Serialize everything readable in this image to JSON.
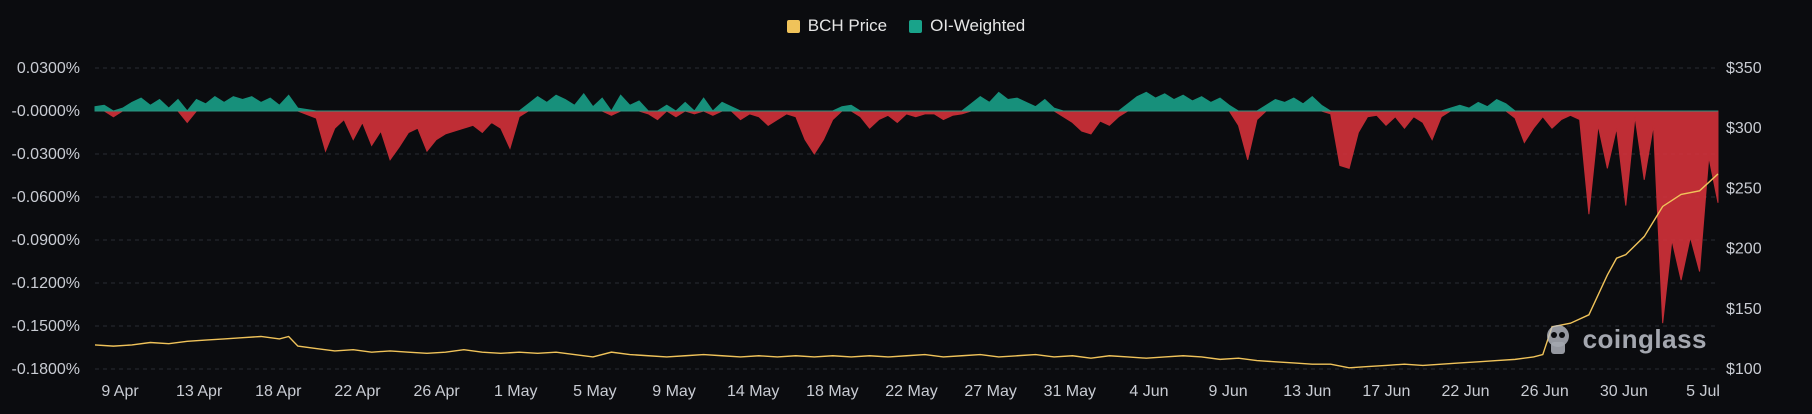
{
  "legend": {
    "price_label": "BCH Price",
    "oi_label": "OI-Weighted"
  },
  "watermark": {
    "text": "coinglass"
  },
  "colors": {
    "price": "#f0c35a",
    "positive": "#19a38a",
    "negative": "#d8323b",
    "grid": "#2a2d33",
    "text": "#c9ccd3"
  },
  "chart_data": {
    "type": "area",
    "grid": "horizontal-dashed",
    "legend_position": "top-center",
    "x_ticks": [
      "9 Apr",
      "13 Apr",
      "18 Apr",
      "22 Apr",
      "26 Apr",
      "1 May",
      "5 May",
      "9 May",
      "14 May",
      "18 May",
      "22 May",
      "27 May",
      "31 May",
      "4 Jun",
      "9 Jun",
      "13 Jun",
      "17 Jun",
      "22 Jun",
      "26 Jun",
      "30 Jun",
      "5 Jul"
    ],
    "y_left": {
      "ticks": [
        "0.0300%",
        "-0.0000%",
        "-0.0300%",
        "-0.0600%",
        "-0.0900%",
        "-0.1200%",
        "-0.1500%",
        "-0.1800%"
      ],
      "range": [
        -0.18,
        0.03
      ]
    },
    "y_right": {
      "ticks": [
        "$350",
        "$300",
        "$250",
        "$200",
        "$150",
        "$100"
      ],
      "range": [
        100,
        350
      ]
    },
    "x_range": [
      0,
      88
    ],
    "series": [
      {
        "name": "OI-Weighted",
        "axis": "left",
        "points": [
          [
            0,
            0.003
          ],
          [
            0.5,
            0.004
          ],
          [
            1,
            -0.004
          ],
          [
            1.5,
            0.002
          ],
          [
            2,
            0.006
          ],
          [
            2.5,
            0.009
          ],
          [
            3,
            0.004
          ],
          [
            3.5,
            0.008
          ],
          [
            4,
            0.002
          ],
          [
            4.5,
            0.008
          ],
          [
            5,
            -0.008
          ],
          [
            5.5,
            0.008
          ],
          [
            6,
            0.005
          ],
          [
            6.5,
            0.01
          ],
          [
            7,
            0.006
          ],
          [
            7.5,
            0.01
          ],
          [
            8,
            0.008
          ],
          [
            8.5,
            0.01
          ],
          [
            9,
            0.006
          ],
          [
            9.5,
            0.009
          ],
          [
            10,
            0.004
          ],
          [
            10.5,
            0.011
          ],
          [
            11,
            0.002
          ],
          [
            12,
            -0.005
          ],
          [
            12.5,
            -0.028
          ],
          [
            13,
            -0.012
          ],
          [
            13.5,
            -0.006
          ],
          [
            14,
            -0.02
          ],
          [
            14.5,
            -0.008
          ],
          [
            15,
            -0.024
          ],
          [
            15.5,
            -0.014
          ],
          [
            16,
            -0.034
          ],
          [
            16.5,
            -0.025
          ],
          [
            17,
            -0.015
          ],
          [
            17.5,
            -0.012
          ],
          [
            18,
            -0.028
          ],
          [
            18.5,
            -0.02
          ],
          [
            19,
            -0.016
          ],
          [
            19.5,
            -0.014
          ],
          [
            20,
            -0.012
          ],
          [
            20.5,
            -0.01
          ],
          [
            21,
            -0.015
          ],
          [
            21.5,
            -0.008
          ],
          [
            22,
            -0.012
          ],
          [
            22.5,
            -0.026
          ],
          [
            23,
            -0.004
          ],
          [
            23.5,
            0.005
          ],
          [
            24,
            0.01
          ],
          [
            24.5,
            0.006
          ],
          [
            25,
            0.011
          ],
          [
            25.5,
            0.008
          ],
          [
            26,
            0.004
          ],
          [
            26.5,
            0.012
          ],
          [
            27,
            0.003
          ],
          [
            27.5,
            0.009
          ],
          [
            28,
            -0.003
          ],
          [
            28.5,
            0.011
          ],
          [
            29,
            0.004
          ],
          [
            29.5,
            0.007
          ],
          [
            30,
            -0.002
          ],
          [
            30.5,
            -0.006
          ],
          [
            31,
            0.004
          ],
          [
            31.5,
            -0.004
          ],
          [
            32,
            0.006
          ],
          [
            32.5,
            -0.002
          ],
          [
            33,
            0.009
          ],
          [
            33.5,
            -0.003
          ],
          [
            34,
            0.006
          ],
          [
            34.5,
            0.003
          ],
          [
            35,
            -0.006
          ],
          [
            35.5,
            -0.002
          ],
          [
            36,
            -0.004
          ],
          [
            36.5,
            -0.01
          ],
          [
            37,
            -0.006
          ],
          [
            37.5,
            -0.002
          ],
          [
            38,
            -0.004
          ],
          [
            38.5,
            -0.02
          ],
          [
            39,
            -0.03
          ],
          [
            39.5,
            -0.02
          ],
          [
            40,
            -0.006
          ],
          [
            40.5,
            0.003
          ],
          [
            41,
            0.004
          ],
          [
            41.5,
            -0.004
          ],
          [
            42,
            -0.012
          ],
          [
            42.5,
            -0.006
          ],
          [
            43,
            -0.003
          ],
          [
            43.5,
            -0.008
          ],
          [
            44,
            -0.002
          ],
          [
            44.5,
            -0.004
          ],
          [
            45,
            -0.002
          ],
          [
            45.5,
            -0.002
          ],
          [
            46,
            -0.006
          ],
          [
            46.5,
            -0.003
          ],
          [
            47,
            -0.002
          ],
          [
            47.5,
            0.005
          ],
          [
            48,
            0.01
          ],
          [
            48.5,
            0.006
          ],
          [
            49,
            0.013
          ],
          [
            49.5,
            0.008
          ],
          [
            50,
            0.009
          ],
          [
            50.5,
            0.006
          ],
          [
            51,
            0.003
          ],
          [
            51.5,
            0.008
          ],
          [
            52,
            0.002
          ],
          [
            52.5,
            -0.004
          ],
          [
            53,
            -0.008
          ],
          [
            53.5,
            -0.014
          ],
          [
            54,
            -0.016
          ],
          [
            54.5,
            -0.007
          ],
          [
            55,
            -0.01
          ],
          [
            55.5,
            -0.004
          ],
          [
            56,
            0.005
          ],
          [
            56.5,
            0.01
          ],
          [
            57,
            0.013
          ],
          [
            57.5,
            0.009
          ],
          [
            58,
            0.012
          ],
          [
            58.5,
            0.008
          ],
          [
            59,
            0.011
          ],
          [
            59.5,
            0.007
          ],
          [
            60,
            0.01
          ],
          [
            60.5,
            0.006
          ],
          [
            61,
            0.009
          ],
          [
            61.5,
            0.004
          ],
          [
            62,
            -0.01
          ],
          [
            62.5,
            -0.034
          ],
          [
            63,
            -0.006
          ],
          [
            63.5,
            0.004
          ],
          [
            64,
            0.008
          ],
          [
            64.5,
            0.006
          ],
          [
            65,
            0.009
          ],
          [
            65.5,
            0.005
          ],
          [
            66,
            0.01
          ],
          [
            66.5,
            0.004
          ],
          [
            67,
            -0.002
          ],
          [
            67.5,
            -0.038
          ],
          [
            68,
            -0.04
          ],
          [
            68.5,
            -0.015
          ],
          [
            69,
            -0.004
          ],
          [
            69.5,
            -0.003
          ],
          [
            70,
            -0.01
          ],
          [
            70.5,
            -0.004
          ],
          [
            71,
            -0.012
          ],
          [
            71.5,
            -0.004
          ],
          [
            72,
            -0.008
          ],
          [
            72.5,
            -0.02
          ],
          [
            73,
            -0.004
          ],
          [
            73.5,
            0.002
          ],
          [
            74,
            0.004
          ],
          [
            74.5,
            0.002
          ],
          [
            75,
            0.006
          ],
          [
            75.5,
            0.003
          ],
          [
            76,
            0.008
          ],
          [
            76.5,
            0.005
          ],
          [
            77,
            -0.005
          ],
          [
            77.5,
            -0.022
          ],
          [
            78,
            -0.012
          ],
          [
            78.5,
            -0.004
          ],
          [
            79,
            -0.012
          ],
          [
            79.5,
            -0.006
          ],
          [
            80,
            -0.003
          ],
          [
            80.5,
            -0.006
          ],
          [
            81,
            -0.072
          ],
          [
            81.5,
            -0.01
          ],
          [
            82,
            -0.04
          ],
          [
            82.5,
            -0.012
          ],
          [
            83,
            -0.066
          ],
          [
            83.5,
            -0.004
          ],
          [
            84,
            -0.048
          ],
          [
            84.5,
            -0.01
          ],
          [
            85,
            -0.148
          ],
          [
            85.5,
            -0.09
          ],
          [
            86,
            -0.118
          ],
          [
            86.5,
            -0.088
          ],
          [
            87,
            -0.112
          ],
          [
            87.5,
            -0.032
          ],
          [
            88,
            -0.064
          ]
        ]
      },
      {
        "name": "BCH Price",
        "axis": "right",
        "points": [
          [
            0,
            120
          ],
          [
            1,
            119
          ],
          [
            2,
            120
          ],
          [
            3,
            122
          ],
          [
            4,
            121
          ],
          [
            5,
            123
          ],
          [
            6,
            124
          ],
          [
            7,
            125
          ],
          [
            8,
            126
          ],
          [
            9,
            127
          ],
          [
            10,
            125
          ],
          [
            10.5,
            127
          ],
          [
            11,
            119
          ],
          [
            12,
            117
          ],
          [
            13,
            115
          ],
          [
            14,
            116
          ],
          [
            15,
            114
          ],
          [
            16,
            115
          ],
          [
            17,
            114
          ],
          [
            18,
            113
          ],
          [
            19,
            114
          ],
          [
            20,
            116
          ],
          [
            21,
            114
          ],
          [
            22,
            113
          ],
          [
            23,
            114
          ],
          [
            24,
            113
          ],
          [
            25,
            114
          ],
          [
            26,
            112
          ],
          [
            27,
            110
          ],
          [
            28,
            114
          ],
          [
            29,
            112
          ],
          [
            30,
            111
          ],
          [
            31,
            110
          ],
          [
            32,
            111
          ],
          [
            33,
            112
          ],
          [
            34,
            111
          ],
          [
            35,
            110
          ],
          [
            36,
            111
          ],
          [
            37,
            110
          ],
          [
            38,
            111
          ],
          [
            39,
            110
          ],
          [
            40,
            111
          ],
          [
            41,
            110
          ],
          [
            42,
            111
          ],
          [
            43,
            110
          ],
          [
            44,
            111
          ],
          [
            45,
            112
          ],
          [
            46,
            110
          ],
          [
            47,
            111
          ],
          [
            48,
            112
          ],
          [
            49,
            110
          ],
          [
            50,
            111
          ],
          [
            51,
            112
          ],
          [
            52,
            110
          ],
          [
            53,
            111
          ],
          [
            54,
            109
          ],
          [
            55,
            111
          ],
          [
            56,
            110
          ],
          [
            57,
            109
          ],
          [
            58,
            110
          ],
          [
            59,
            111
          ],
          [
            60,
            110
          ],
          [
            61,
            108
          ],
          [
            62,
            109
          ],
          [
            63,
            107
          ],
          [
            64,
            106
          ],
          [
            65,
            105
          ],
          [
            66,
            104
          ],
          [
            67,
            104
          ],
          [
            68,
            101
          ],
          [
            69,
            102
          ],
          [
            70,
            103
          ],
          [
            71,
            104
          ],
          [
            72,
            103
          ],
          [
            73,
            104
          ],
          [
            74,
            105
          ],
          [
            75,
            106
          ],
          [
            76,
            107
          ],
          [
            77,
            108
          ],
          [
            78,
            110
          ],
          [
            78.5,
            112
          ],
          [
            79,
            135
          ],
          [
            80,
            138
          ],
          [
            81,
            145
          ],
          [
            82,
            178
          ],
          [
            82.5,
            192
          ],
          [
            83,
            195
          ],
          [
            84,
            210
          ],
          [
            85,
            235
          ],
          [
            85.5,
            240
          ],
          [
            86,
            245
          ],
          [
            87,
            248
          ],
          [
            88,
            262
          ]
        ]
      }
    ]
  }
}
